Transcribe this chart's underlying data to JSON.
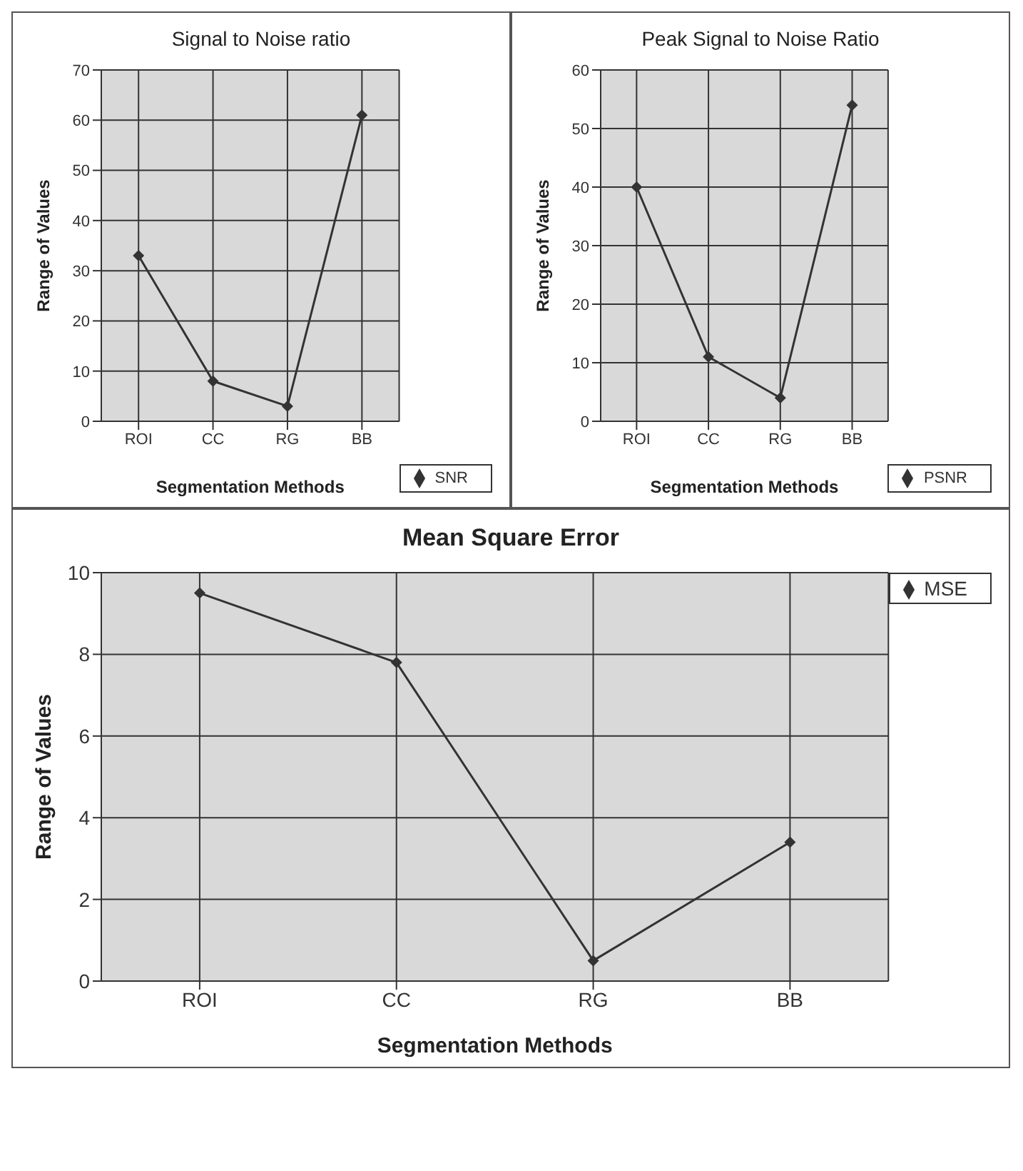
{
  "chart_data": [
    {
      "type": "line",
      "title": "Signal to Noise ratio",
      "xlabel": "Segmentation Methods",
      "ylabel": "Range of Values",
      "categories": [
        "ROI",
        "CC",
        "RG",
        "BB"
      ],
      "series": [
        {
          "name": "SNR",
          "color": "#333333",
          "values": [
            33,
            8,
            3,
            61
          ]
        }
      ],
      "ylim": [
        0,
        70
      ],
      "yticks": [
        0,
        10,
        20,
        30,
        40,
        50,
        60,
        70
      ],
      "grid": true,
      "legend": "bottom right",
      "marker": "diamond"
    },
    {
      "type": "line",
      "title": "Peak Signal to Noise Ratio",
      "xlabel": "Segmentation Methods",
      "ylabel": "Range of Values",
      "categories": [
        "ROI",
        "CC",
        "RG",
        "BB"
      ],
      "series": [
        {
          "name": "PSNR",
          "color": "#333333",
          "values": [
            40,
            11,
            4,
            54
          ]
        }
      ],
      "ylim": [
        0,
        60
      ],
      "yticks": [
        0,
        10,
        20,
        30,
        40,
        50,
        60
      ],
      "grid": true,
      "legend": "bottom right",
      "marker": "diamond"
    },
    {
      "type": "line",
      "title": "Mean Square Error",
      "xlabel": "Segmentation Methods",
      "ylabel": "Range of Values",
      "categories": [
        "ROI",
        "CC",
        "RG",
        "BB"
      ],
      "series": [
        {
          "name": "MSE",
          "color": "#333333",
          "values": [
            9.5,
            7.8,
            0.5,
            3.4
          ]
        }
      ],
      "ylim": [
        0,
        10
      ],
      "yticks": [
        0,
        2,
        4,
        6,
        8,
        10
      ],
      "grid": true,
      "legend": "top right",
      "marker": "diamond"
    }
  ]
}
